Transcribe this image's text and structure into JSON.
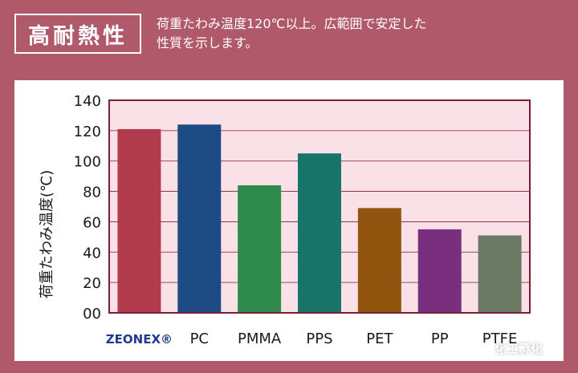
{
  "header": {
    "badge": "高耐熱性",
    "description_line1": "荷重たわみ温度120℃以上。広範囲で安定した",
    "description_line2": "性質を示します。"
  },
  "watermark": "化工孵化",
  "colors": {
    "background": "#b0596b",
    "plot_background": "#f9e1e7",
    "plot_border": "#7a1f30",
    "gridline": "#7a1f30"
  },
  "chart_data": {
    "type": "bar",
    "categories": [
      "ZEONEX®",
      "PC",
      "PMMA",
      "PPS",
      "PET",
      "PP",
      "PTFE"
    ],
    "values": [
      121,
      124,
      84,
      105,
      69,
      55,
      51
    ],
    "bar_colors": [
      "#b23c4e",
      "#1f4b84",
      "#2f8a4e",
      "#187368",
      "#91550f",
      "#7a2f7e",
      "#6a7a64"
    ],
    "category_label_colors": [
      "#1f3b8f",
      "#1a1a1a",
      "#1a1a1a",
      "#1a1a1a",
      "#1a1a1a",
      "#1a1a1a",
      "#1a1a1a"
    ],
    "title": "",
    "xlabel": "",
    "ylabel": "荷重たわみ温度(℃)",
    "ylim": [
      0,
      140
    ],
    "yticks": [
      0,
      20,
      40,
      60,
      80,
      100,
      120,
      140
    ],
    "ytick_labels": [
      "00",
      "20",
      "40",
      "60",
      "80",
      "100",
      "120",
      "140"
    ],
    "grid": true
  }
}
